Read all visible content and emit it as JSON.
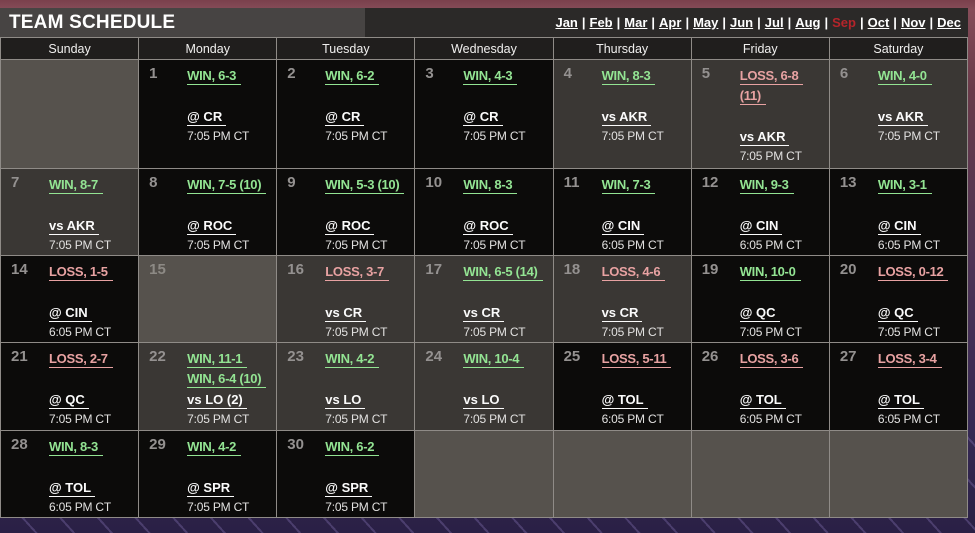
{
  "page": {
    "title": "TEAM SCHEDULE"
  },
  "month_nav": {
    "months": [
      "Jan",
      "Feb",
      "Mar",
      "Apr",
      "May",
      "Jun",
      "Jul",
      "Aug",
      "Sep",
      "Oct",
      "Nov",
      "Dec"
    ],
    "active": "Sep",
    "separator": "|"
  },
  "weekdays": [
    "Sunday",
    "Monday",
    "Tuesday",
    "Wednesday",
    "Thursday",
    "Friday",
    "Saturday"
  ],
  "colors": {
    "win": "#93e493",
    "loss": "#e8a2a2",
    "active_month": "#b5242a",
    "away_bg": "#0c0b0a",
    "home_bg": "#3a3734",
    "blank_bg": "#56524d"
  },
  "calendar": {
    "rows": [
      [
        {
          "type": "blank"
        },
        {
          "type": "away",
          "day": "1",
          "results": [
            {
              "text": "WIN, 6-3",
              "outcome": "win"
            }
          ],
          "opponent": "@ CR",
          "time": "7:05 PM CT"
        },
        {
          "type": "away",
          "day": "2",
          "results": [
            {
              "text": "WIN, 6-2",
              "outcome": "win"
            }
          ],
          "opponent": "@ CR",
          "time": "7:05 PM CT"
        },
        {
          "type": "away",
          "day": "3",
          "results": [
            {
              "text": "WIN, 4-3",
              "outcome": "win"
            }
          ],
          "opponent": "@ CR",
          "time": "7:05 PM CT"
        },
        {
          "type": "home",
          "day": "4",
          "results": [
            {
              "text": "WIN, 8-3",
              "outcome": "win"
            }
          ],
          "opponent": "vs AKR",
          "time": "7:05 PM CT"
        },
        {
          "type": "home",
          "day": "5",
          "results": [
            {
              "text": "LOSS, 6-8",
              "outcome": "loss"
            },
            {
              "text": "(11)",
              "outcome": "loss"
            }
          ],
          "opponent": "vs AKR",
          "time": "7:05 PM CT"
        },
        {
          "type": "home",
          "day": "6",
          "results": [
            {
              "text": "WIN, 4-0",
              "outcome": "win"
            }
          ],
          "opponent": "vs AKR",
          "time": "7:05 PM CT"
        }
      ],
      [
        {
          "type": "home",
          "day": "7",
          "results": [
            {
              "text": "WIN, 8-7",
              "outcome": "win"
            }
          ],
          "opponent": "vs AKR",
          "time": "7:05 PM CT"
        },
        {
          "type": "away",
          "day": "8",
          "results": [
            {
              "text": "WIN, 7-5 (10)",
              "outcome": "win"
            }
          ],
          "opponent": "@ ROC",
          "time": "7:05 PM CT"
        },
        {
          "type": "away",
          "day": "9",
          "results": [
            {
              "text": "WIN, 5-3 (10)",
              "outcome": "win"
            }
          ],
          "opponent": "@ ROC",
          "time": "7:05 PM CT"
        },
        {
          "type": "away",
          "day": "10",
          "results": [
            {
              "text": "WIN, 8-3",
              "outcome": "win"
            }
          ],
          "opponent": "@ ROC",
          "time": "7:05 PM CT"
        },
        {
          "type": "away",
          "day": "11",
          "results": [
            {
              "text": "WIN, 7-3",
              "outcome": "win"
            }
          ],
          "opponent": "@ CIN",
          "time": "6:05 PM CT"
        },
        {
          "type": "away",
          "day": "12",
          "results": [
            {
              "text": "WIN, 9-3",
              "outcome": "win"
            }
          ],
          "opponent": "@ CIN",
          "time": "6:05 PM CT"
        },
        {
          "type": "away",
          "day": "13",
          "results": [
            {
              "text": "WIN, 3-1",
              "outcome": "win"
            }
          ],
          "opponent": "@ CIN",
          "time": "6:05 PM CT"
        }
      ],
      [
        {
          "type": "away",
          "day": "14",
          "results": [
            {
              "text": "LOSS, 1-5",
              "outcome": "loss"
            }
          ],
          "opponent": "@ CIN",
          "time": "6:05 PM CT"
        },
        {
          "type": "off",
          "day": "15"
        },
        {
          "type": "home",
          "day": "16",
          "results": [
            {
              "text": "LOSS, 3-7",
              "outcome": "loss"
            }
          ],
          "opponent": "vs CR",
          "time": "7:05 PM CT"
        },
        {
          "type": "home",
          "day": "17",
          "results": [
            {
              "text": "WIN, 6-5 (14)",
              "outcome": "win"
            }
          ],
          "opponent": "vs CR",
          "time": "7:05 PM CT"
        },
        {
          "type": "home",
          "day": "18",
          "results": [
            {
              "text": "LOSS, 4-6",
              "outcome": "loss"
            }
          ],
          "opponent": "vs CR",
          "time": "7:05 PM CT"
        },
        {
          "type": "away",
          "day": "19",
          "results": [
            {
              "text": "WIN, 10-0",
              "outcome": "win"
            }
          ],
          "opponent": "@ QC",
          "time": "7:05 PM CT"
        },
        {
          "type": "away",
          "day": "20",
          "results": [
            {
              "text": "LOSS, 0-12",
              "outcome": "loss"
            }
          ],
          "opponent": "@ QC",
          "time": "7:05 PM CT"
        }
      ],
      [
        {
          "type": "away",
          "day": "21",
          "results": [
            {
              "text": "LOSS, 2-7",
              "outcome": "loss"
            }
          ],
          "opponent": "@ QC",
          "time": "7:05 PM CT"
        },
        {
          "type": "home",
          "day": "22",
          "dh": true,
          "results": [
            {
              "text": "WIN, 11-1",
              "outcome": "win"
            },
            {
              "text": "WIN, 6-4 (10)",
              "outcome": "win"
            }
          ],
          "opponent": "vs LO (2)",
          "time": "7:05 PM CT"
        },
        {
          "type": "home",
          "day": "23",
          "results": [
            {
              "text": "WIN, 4-2",
              "outcome": "win"
            }
          ],
          "opponent": "vs LO",
          "time": "7:05 PM CT"
        },
        {
          "type": "home",
          "day": "24",
          "results": [
            {
              "text": "WIN, 10-4",
              "outcome": "win"
            }
          ],
          "opponent": "vs LO",
          "time": "7:05 PM CT"
        },
        {
          "type": "away",
          "day": "25",
          "results": [
            {
              "text": "LOSS, 5-11",
              "outcome": "loss"
            }
          ],
          "opponent": "@ TOL",
          "time": "6:05 PM CT"
        },
        {
          "type": "away",
          "day": "26",
          "results": [
            {
              "text": "LOSS, 3-6",
              "outcome": "loss"
            }
          ],
          "opponent": "@ TOL",
          "time": "6:05 PM CT"
        },
        {
          "type": "away",
          "day": "27",
          "results": [
            {
              "text": "LOSS, 3-4",
              "outcome": "loss"
            }
          ],
          "opponent": "@ TOL",
          "time": "6:05 PM CT"
        }
      ],
      [
        {
          "type": "away",
          "day": "28",
          "results": [
            {
              "text": "WIN, 8-3",
              "outcome": "win"
            }
          ],
          "opponent": "@ TOL",
          "time": "6:05 PM CT"
        },
        {
          "type": "away",
          "day": "29",
          "results": [
            {
              "text": "WIN, 4-2",
              "outcome": "win"
            }
          ],
          "opponent": "@ SPR",
          "time": "7:05 PM CT"
        },
        {
          "type": "away",
          "day": "30",
          "results": [
            {
              "text": "WIN, 6-2",
              "outcome": "win"
            }
          ],
          "opponent": "@ SPR",
          "time": "7:05 PM CT"
        },
        {
          "type": "blank"
        },
        {
          "type": "blank"
        },
        {
          "type": "blank"
        },
        {
          "type": "blank"
        }
      ]
    ]
  }
}
